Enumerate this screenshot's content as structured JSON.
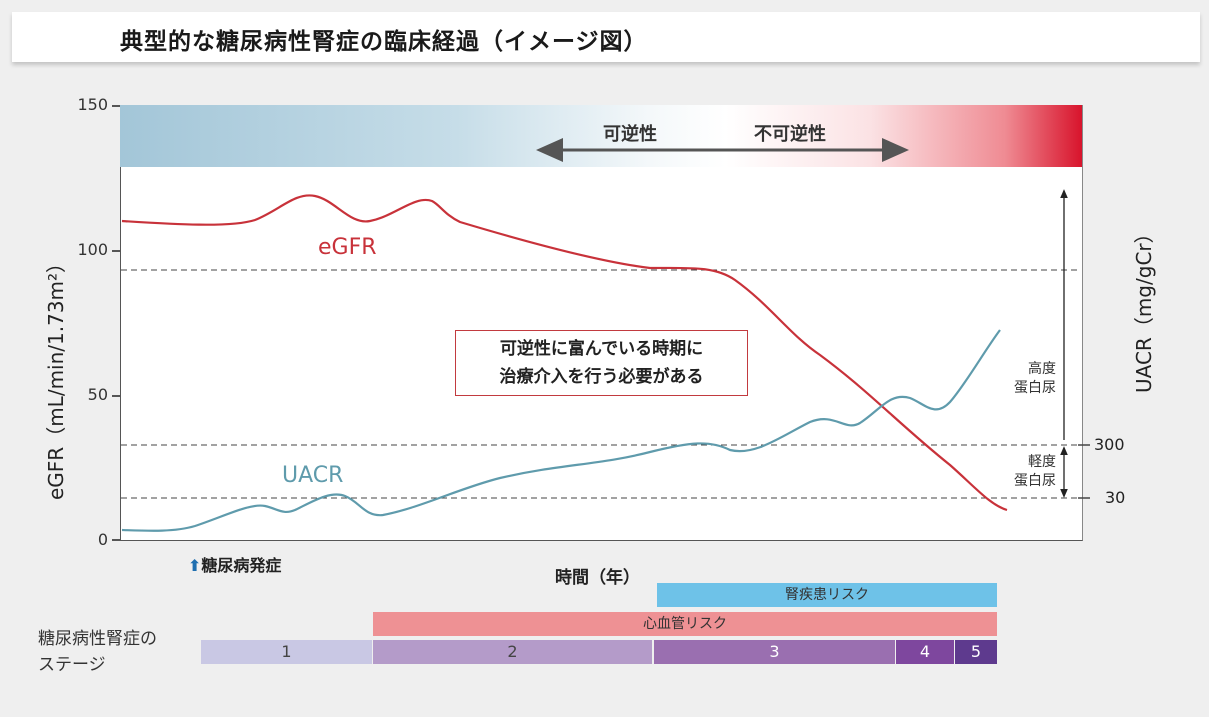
{
  "title": "典型的な糖尿病性腎症の臨床経過（イメージ図）",
  "left_axis": {
    "label": "eGFR（mL/min/1.73m²）",
    "ticks": [
      "150",
      "100",
      "50",
      "0"
    ]
  },
  "right_axis": {
    "label": "UACR（mg/gCr）",
    "ticks": [
      "300",
      "30"
    ]
  },
  "reversibility": {
    "reversible": "可逆性",
    "irreversible": "不可逆性"
  },
  "series": {
    "egfr": "eGFR",
    "uacr": "UACR"
  },
  "colors": {
    "egfr": "#c8323a",
    "uacr": "#5f9bac",
    "kidney_risk": "#6ec2e8",
    "cv_risk": "#ee9194"
  },
  "callout": {
    "line1": "可逆性に富んでいる時期に",
    "line2": "治療介入を行う必要がある"
  },
  "proteinuria": {
    "severe_line1": "高度",
    "severe_line2": "蛋白尿",
    "mild_line1": "軽度",
    "mild_line2": "蛋白尿"
  },
  "onset": "糖尿病発症",
  "x_axis_label": "時間（年）",
  "risks": {
    "kidney": "腎疾患リスク",
    "cardio": "心血管リスク"
  },
  "stages": {
    "label_line1": "糖尿病性腎症の",
    "label_line2": "ステージ",
    "items": [
      "1",
      "2",
      "3",
      "4",
      "5"
    ]
  }
}
